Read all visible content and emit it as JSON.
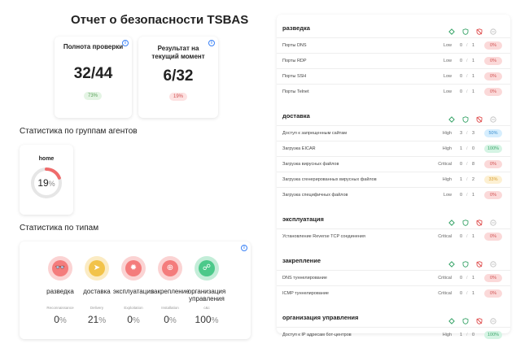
{
  "title": "Отчет о безопасности TSBAS",
  "cards": {
    "completeness": {
      "title": "Полнота проверки",
      "value": "32/44",
      "pill": "73%"
    },
    "current": {
      "title": "Результат на текущий момент",
      "value": "6/32",
      "pill": "19%"
    }
  },
  "agent_groups": {
    "heading": "Статистика по группам агентов",
    "group": {
      "name": "home",
      "value": "19",
      "unit": "%",
      "fraction": 0.19
    }
  },
  "types": {
    "heading": "Статистика по типам",
    "items": [
      {
        "label": "разведка",
        "sub": "Reconnaissance",
        "value": "0",
        "unit": "%",
        "icon": "binoculars-icon",
        "color": "#f47c7c",
        "glyph": "👓"
      },
      {
        "label": "доставка",
        "sub": "Delivery",
        "value": "21",
        "unit": "%",
        "icon": "paper-plane-icon",
        "color": "#f2c34a",
        "glyph": "➤"
      },
      {
        "label": "эксплуатация",
        "sub": "Exploitation",
        "value": "0",
        "unit": "%",
        "icon": "gear-icon",
        "color": "#f47c7c",
        "glyph": "✹"
      },
      {
        "label": "закрепление",
        "sub": "Installation",
        "value": "0",
        "unit": "%",
        "icon": "globe-icon",
        "color": "#f47c7c",
        "glyph": "⊕"
      },
      {
        "label": "организация управления",
        "sub": "c&c",
        "value": "100",
        "unit": "%",
        "icon": "satellite-icon",
        "color": "#4cc98a",
        "glyph": "☍"
      }
    ]
  },
  "groups": [
    {
      "name": "разведка",
      "rows": [
        {
          "name": "Порты DNS",
          "level": "Low",
          "n1": "0",
          "n2": "1",
          "pct": "0%",
          "color": "red"
        },
        {
          "name": "Порты RDP",
          "level": "Low",
          "n1": "0",
          "n2": "1",
          "pct": "0%",
          "color": "red"
        },
        {
          "name": "Порты SSH",
          "level": "Low",
          "n1": "0",
          "n2": "1",
          "pct": "0%",
          "color": "red"
        },
        {
          "name": "Порты Telnet",
          "level": "Low",
          "n1": "0",
          "n2": "1",
          "pct": "0%",
          "color": "red"
        }
      ]
    },
    {
      "name": "доставка",
      "rows": [
        {
          "name": "Доступ к запрещенным сайтам",
          "level": "High",
          "n1": "3",
          "n2": "3",
          "pct": "50%",
          "color": "blue"
        },
        {
          "name": "Загрузка EICAR",
          "level": "High",
          "n1": "1",
          "n2": "0",
          "pct": "100%",
          "color": "green"
        },
        {
          "name": "Загрузка вирусных файлов",
          "level": "Critical",
          "n1": "0",
          "n2": "8",
          "pct": "0%",
          "color": "red"
        },
        {
          "name": "Загрузка сгенерированных вирусных файлов",
          "level": "High",
          "n1": "1",
          "n2": "2",
          "pct": "33%",
          "color": "yellow"
        },
        {
          "name": "Загрузка специфичных файлов",
          "level": "Low",
          "n1": "0",
          "n2": "1",
          "pct": "0%",
          "color": "red"
        }
      ]
    },
    {
      "name": "эксплуатация",
      "rows": [
        {
          "name": "Установление Reverse TCP соединения",
          "level": "Critical",
          "n1": "0",
          "n2": "1",
          "pct": "0%",
          "color": "red"
        }
      ]
    },
    {
      "name": "закрепление",
      "rows": [
        {
          "name": "DNS туннелирование",
          "level": "Critical",
          "n1": "0",
          "n2": "1",
          "pct": "0%",
          "color": "red"
        },
        {
          "name": "ICMP туннелирование",
          "level": "Critical",
          "n1": "0",
          "n2": "1",
          "pct": "0%",
          "color": "red"
        }
      ]
    },
    {
      "name": "организация управления",
      "rows": [
        {
          "name": "Доступ к IP адресам бот-центров",
          "level": "High",
          "n1": "1",
          "n2": "0",
          "pct": "100%",
          "color": "green"
        }
      ]
    }
  ]
}
